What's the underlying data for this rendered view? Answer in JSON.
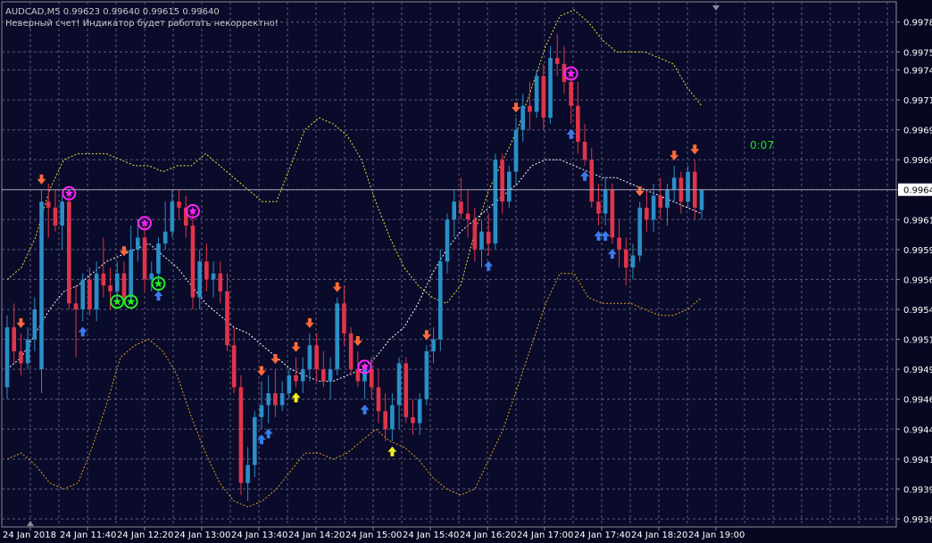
{
  "header": {
    "symbol_line": "AUDCAD,M5  0.99623 0.99640 0.99615 0.99640",
    "warning": "Неверный счет! Индикатор будет работать некорректно!"
  },
  "timer": "0:07",
  "colors": {
    "background": "#0a0a2a",
    "grid": "#5a5a7a",
    "bull_candle": "#2a8fc6",
    "bear_candle": "#e0344a",
    "upper_band": "#e8e23a",
    "middle_band": "#ffffff",
    "lower_band": "#e0a020",
    "sell_arrow": "#ff6a3a",
    "buy_arrow": "#3a7ae8",
    "buy_arrow_alt": "#f0f020",
    "star_magenta": "#ff22ff",
    "star_green": "#22ee22",
    "axis_text": "#ffffff",
    "current_price_bg": "#ffffff",
    "timer": "#22e022"
  },
  "chart_data": {
    "type": "candlestick",
    "symbol": "AUDCAD",
    "timeframe": "M5",
    "ohlc_header": {
      "open": 0.99623,
      "high": 0.9964,
      "low": 0.99615,
      "close": 0.9964
    },
    "current_price": "0.99640",
    "ylim": [
      0.99365,
      0.99785
    ],
    "y_ticks": [
      "0.99780",
      "0.99755",
      "0.99740",
      "0.99715",
      "0.99690",
      "0.99665",
      "0.99640",
      "0.99615",
      "0.99590",
      "0.99565",
      "0.99540",
      "0.99515",
      "0.99490",
      "0.99465",
      "0.99440",
      "0.99415",
      "0.99390",
      "0.99365"
    ],
    "x_ticks": [
      "24 Jan 2018",
      "24 Jan 11:40",
      "24 Jan 12:20",
      "24 Jan 13:00",
      "24 Jan 13:40",
      "24 Jan 14:20",
      "24 Jan 15:00",
      "24 Jan 15:40",
      "24 Jan 16:20",
      "24 Jan 17:00",
      "24 Jan 17:40",
      "24 Jan 18:20",
      "24 Jan 19:00"
    ],
    "grid": true,
    "candles": [
      {
        "o": 0.99475,
        "h": 0.99535,
        "l": 0.99465,
        "c": 0.99525
      },
      {
        "o": 0.99525,
        "h": 0.99545,
        "l": 0.99495,
        "c": 0.99505
      },
      {
        "o": 0.99505,
        "h": 0.9952,
        "l": 0.99485,
        "c": 0.99495
      },
      {
        "o": 0.99495,
        "h": 0.99525,
        "l": 0.9949,
        "c": 0.99515
      },
      {
        "o": 0.99515,
        "h": 0.9955,
        "l": 0.99505,
        "c": 0.9954
      },
      {
        "o": 0.9949,
        "h": 0.9964,
        "l": 0.9947,
        "c": 0.9963
      },
      {
        "o": 0.9963,
        "h": 0.99645,
        "l": 0.996,
        "c": 0.99625
      },
      {
        "o": 0.99625,
        "h": 0.9964,
        "l": 0.99605,
        "c": 0.9961
      },
      {
        "o": 0.9961,
        "h": 0.99635,
        "l": 0.9959,
        "c": 0.9963
      },
      {
        "o": 0.9963,
        "h": 0.9964,
        "l": 0.9954,
        "c": 0.99545
      },
      {
        "o": 0.99545,
        "h": 0.9956,
        "l": 0.995,
        "c": 0.9954
      },
      {
        "o": 0.9954,
        "h": 0.9957,
        "l": 0.9953,
        "c": 0.99565
      },
      {
        "o": 0.99565,
        "h": 0.99575,
        "l": 0.99535,
        "c": 0.9954
      },
      {
        "o": 0.9954,
        "h": 0.9958,
        "l": 0.9953,
        "c": 0.9957
      },
      {
        "o": 0.9957,
        "h": 0.996,
        "l": 0.9955,
        "c": 0.9956
      },
      {
        "o": 0.9956,
        "h": 0.99575,
        "l": 0.9954,
        "c": 0.99555
      },
      {
        "o": 0.99555,
        "h": 0.9958,
        "l": 0.99545,
        "c": 0.9957
      },
      {
        "o": 0.9957,
        "h": 0.9958,
        "l": 0.99545,
        "c": 0.9955
      },
      {
        "o": 0.9955,
        "h": 0.9961,
        "l": 0.99545,
        "c": 0.9959
      },
      {
        "o": 0.9959,
        "h": 0.99615,
        "l": 0.9958,
        "c": 0.996
      },
      {
        "o": 0.996,
        "h": 0.99615,
        "l": 0.99555,
        "c": 0.99565
      },
      {
        "o": 0.99565,
        "h": 0.9958,
        "l": 0.99555,
        "c": 0.9957
      },
      {
        "o": 0.9957,
        "h": 0.996,
        "l": 0.9956,
        "c": 0.99595
      },
      {
        "o": 0.99595,
        "h": 0.9963,
        "l": 0.9959,
        "c": 0.99605
      },
      {
        "o": 0.99605,
        "h": 0.9964,
        "l": 0.996,
        "c": 0.9963
      },
      {
        "o": 0.9963,
        "h": 0.9964,
        "l": 0.99615,
        "c": 0.99625
      },
      {
        "o": 0.99625,
        "h": 0.99635,
        "l": 0.996,
        "c": 0.9961
      },
      {
        "o": 0.9961,
        "h": 0.99625,
        "l": 0.9954,
        "c": 0.9955
      },
      {
        "o": 0.9955,
        "h": 0.9959,
        "l": 0.9954,
        "c": 0.9958
      },
      {
        "o": 0.9958,
        "h": 0.99595,
        "l": 0.99555,
        "c": 0.99565
      },
      {
        "o": 0.99565,
        "h": 0.9958,
        "l": 0.9955,
        "c": 0.9957
      },
      {
        "o": 0.9957,
        "h": 0.9958,
        "l": 0.99545,
        "c": 0.99555
      },
      {
        "o": 0.99555,
        "h": 0.9957,
        "l": 0.99505,
        "c": 0.9951
      },
      {
        "o": 0.9951,
        "h": 0.99525,
        "l": 0.9947,
        "c": 0.99475
      },
      {
        "o": 0.99475,
        "h": 0.99485,
        "l": 0.99385,
        "c": 0.99395
      },
      {
        "o": 0.99395,
        "h": 0.99425,
        "l": 0.9938,
        "c": 0.9941
      },
      {
        "o": 0.9941,
        "h": 0.99455,
        "l": 0.994,
        "c": 0.9945
      },
      {
        "o": 0.9945,
        "h": 0.9948,
        "l": 0.9944,
        "c": 0.9946
      },
      {
        "o": 0.9946,
        "h": 0.99485,
        "l": 0.99445,
        "c": 0.9947
      },
      {
        "o": 0.9947,
        "h": 0.9949,
        "l": 0.9945,
        "c": 0.9946
      },
      {
        "o": 0.9946,
        "h": 0.9948,
        "l": 0.99455,
        "c": 0.9947
      },
      {
        "o": 0.9947,
        "h": 0.9949,
        "l": 0.99465,
        "c": 0.99485
      },
      {
        "o": 0.99485,
        "h": 0.995,
        "l": 0.99475,
        "c": 0.9948
      },
      {
        "o": 0.9948,
        "h": 0.995,
        "l": 0.9947,
        "c": 0.9949
      },
      {
        "o": 0.9949,
        "h": 0.9952,
        "l": 0.9948,
        "c": 0.9951
      },
      {
        "o": 0.9951,
        "h": 0.9952,
        "l": 0.9948,
        "c": 0.9949
      },
      {
        "o": 0.9949,
        "h": 0.99505,
        "l": 0.99475,
        "c": 0.9948
      },
      {
        "o": 0.9948,
        "h": 0.995,
        "l": 0.99465,
        "c": 0.9949
      },
      {
        "o": 0.9949,
        "h": 0.9955,
        "l": 0.99485,
        "c": 0.99545
      },
      {
        "o": 0.99545,
        "h": 0.9956,
        "l": 0.9951,
        "c": 0.9952
      },
      {
        "o": 0.9952,
        "h": 0.99525,
        "l": 0.99485,
        "c": 0.9949
      },
      {
        "o": 0.9949,
        "h": 0.99505,
        "l": 0.99475,
        "c": 0.9948
      },
      {
        "o": 0.9948,
        "h": 0.99495,
        "l": 0.99465,
        "c": 0.9949
      },
      {
        "o": 0.9949,
        "h": 0.995,
        "l": 0.99465,
        "c": 0.99475
      },
      {
        "o": 0.99475,
        "h": 0.9949,
        "l": 0.99445,
        "c": 0.99455
      },
      {
        "o": 0.99455,
        "h": 0.9947,
        "l": 0.9943,
        "c": 0.9944
      },
      {
        "o": 0.9944,
        "h": 0.9947,
        "l": 0.9943,
        "c": 0.9946
      },
      {
        "o": 0.9946,
        "h": 0.995,
        "l": 0.9944,
        "c": 0.99495
      },
      {
        "o": 0.99495,
        "h": 0.995,
        "l": 0.99445,
        "c": 0.9945
      },
      {
        "o": 0.9945,
        "h": 0.99465,
        "l": 0.99435,
        "c": 0.99445
      },
      {
        "o": 0.99445,
        "h": 0.9947,
        "l": 0.99435,
        "c": 0.99465
      },
      {
        "o": 0.99465,
        "h": 0.9951,
        "l": 0.9946,
        "c": 0.99505
      },
      {
        "o": 0.99505,
        "h": 0.99525,
        "l": 0.99495,
        "c": 0.99515
      },
      {
        "o": 0.99515,
        "h": 0.9959,
        "l": 0.99505,
        "c": 0.9958
      },
      {
        "o": 0.9958,
        "h": 0.9962,
        "l": 0.9957,
        "c": 0.99615
      },
      {
        "o": 0.99615,
        "h": 0.9964,
        "l": 0.996,
        "c": 0.9963
      },
      {
        "o": 0.9963,
        "h": 0.9965,
        "l": 0.99615,
        "c": 0.9962
      },
      {
        "o": 0.9962,
        "h": 0.9964,
        "l": 0.996,
        "c": 0.99615
      },
      {
        "o": 0.99615,
        "h": 0.99625,
        "l": 0.9958,
        "c": 0.9959
      },
      {
        "o": 0.9959,
        "h": 0.99615,
        "l": 0.99575,
        "c": 0.99605
      },
      {
        "o": 0.99605,
        "h": 0.9962,
        "l": 0.99585,
        "c": 0.99595
      },
      {
        "o": 0.99595,
        "h": 0.9967,
        "l": 0.9959,
        "c": 0.99665
      },
      {
        "o": 0.99665,
        "h": 0.9967,
        "l": 0.9962,
        "c": 0.9963
      },
      {
        "o": 0.9963,
        "h": 0.9966,
        "l": 0.99625,
        "c": 0.99655
      },
      {
        "o": 0.99655,
        "h": 0.997,
        "l": 0.99645,
        "c": 0.9969
      },
      {
        "o": 0.9969,
        "h": 0.9972,
        "l": 0.9968,
        "c": 0.9971
      },
      {
        "o": 0.9971,
        "h": 0.9973,
        "l": 0.9969,
        "c": 0.99705
      },
      {
        "o": 0.99705,
        "h": 0.9974,
        "l": 0.997,
        "c": 0.99735
      },
      {
        "o": 0.99735,
        "h": 0.99745,
        "l": 0.9969,
        "c": 0.997
      },
      {
        "o": 0.997,
        "h": 0.9976,
        "l": 0.99695,
        "c": 0.9975
      },
      {
        "o": 0.9975,
        "h": 0.9977,
        "l": 0.99735,
        "c": 0.99745
      },
      {
        "o": 0.99745,
        "h": 0.9976,
        "l": 0.9972,
        "c": 0.9973
      },
      {
        "o": 0.9973,
        "h": 0.9974,
        "l": 0.99695,
        "c": 0.9971
      },
      {
        "o": 0.9971,
        "h": 0.9973,
        "l": 0.9967,
        "c": 0.9968
      },
      {
        "o": 0.9968,
        "h": 0.99695,
        "l": 0.9966,
        "c": 0.99665
      },
      {
        "o": 0.99665,
        "h": 0.99675,
        "l": 0.99625,
        "c": 0.9963
      },
      {
        "o": 0.9963,
        "h": 0.99645,
        "l": 0.9961,
        "c": 0.9962
      },
      {
        "o": 0.9962,
        "h": 0.9965,
        "l": 0.9961,
        "c": 0.9964
      },
      {
        "o": 0.9964,
        "h": 0.99645,
        "l": 0.99595,
        "c": 0.996
      },
      {
        "o": 0.996,
        "h": 0.99615,
        "l": 0.99575,
        "c": 0.9959
      },
      {
        "o": 0.9959,
        "h": 0.996,
        "l": 0.9956,
        "c": 0.99575
      },
      {
        "o": 0.99575,
        "h": 0.99595,
        "l": 0.99565,
        "c": 0.99585
      },
      {
        "o": 0.99585,
        "h": 0.9963,
        "l": 0.9958,
        "c": 0.99625
      },
      {
        "o": 0.99625,
        "h": 0.9964,
        "l": 0.99605,
        "c": 0.99615
      },
      {
        "o": 0.99615,
        "h": 0.99645,
        "l": 0.99605,
        "c": 0.99635
      },
      {
        "o": 0.99635,
        "h": 0.9965,
        "l": 0.99615,
        "c": 0.99625
      },
      {
        "o": 0.99625,
        "h": 0.99645,
        "l": 0.9961,
        "c": 0.9964
      },
      {
        "o": 0.9964,
        "h": 0.9966,
        "l": 0.9963,
        "c": 0.9965
      },
      {
        "o": 0.9965,
        "h": 0.99655,
        "l": 0.9962,
        "c": 0.9963
      },
      {
        "o": 0.9963,
        "h": 0.9966,
        "l": 0.99625,
        "c": 0.99655
      },
      {
        "o": 0.99655,
        "h": 0.99665,
        "l": 0.99615,
        "c": 0.99625
      },
      {
        "o": 0.99623,
        "h": 0.9964,
        "l": 0.99615,
        "c": 0.9964
      }
    ],
    "bands": {
      "upper": [
        0.99565,
        0.99575,
        0.996,
        0.9964,
        0.99665,
        0.9967,
        0.9967,
        0.9967,
        0.99665,
        0.9966,
        0.9966,
        0.99655,
        0.9966,
        0.9966,
        0.9967,
        0.9966,
        0.9965,
        0.9964,
        0.9963,
        0.9963,
        0.9966,
        0.9969,
        0.997,
        0.99695,
        0.99685,
        0.99665,
        0.9963,
        0.996,
        0.99575,
        0.9956,
        0.9955,
        0.99545,
        0.9956,
        0.99605,
        0.9964,
        0.99665,
        0.9969,
        0.99725,
        0.9976,
        0.99785,
        0.9979,
        0.9978,
        0.99765,
        0.99755,
        0.99755,
        0.99755,
        0.9975,
        0.99745,
        0.99725,
        0.9971
      ],
      "middle": [
        0.9949,
        0.995,
        0.9952,
        0.9954,
        0.99555,
        0.9956,
        0.9957,
        0.9958,
        0.99585,
        0.9959,
        0.99595,
        0.99585,
        0.99575,
        0.9956,
        0.99545,
        0.99535,
        0.99525,
        0.9952,
        0.9951,
        0.995,
        0.9949,
        0.99485,
        0.9948,
        0.9948,
        0.99485,
        0.9949,
        0.995,
        0.99515,
        0.99525,
        0.99545,
        0.9957,
        0.9959,
        0.99605,
        0.99615,
        0.99625,
        0.99635,
        0.99645,
        0.9966,
        0.99665,
        0.99665,
        0.9966,
        0.99655,
        0.9965,
        0.9965,
        0.99645,
        0.9964,
        0.99635,
        0.9963,
        0.99625,
        0.9962
      ],
      "lower": [
        0.99415,
        0.9942,
        0.9941,
        0.99395,
        0.9939,
        0.99395,
        0.99425,
        0.9946,
        0.995,
        0.9951,
        0.99515,
        0.99505,
        0.99485,
        0.9945,
        0.9942,
        0.99395,
        0.9938,
        0.99375,
        0.9938,
        0.9939,
        0.99405,
        0.9942,
        0.9942,
        0.99415,
        0.9942,
        0.9943,
        0.9944,
        0.9943,
        0.99425,
        0.99415,
        0.994,
        0.9939,
        0.99385,
        0.9939,
        0.99415,
        0.9944,
        0.99475,
        0.9951,
        0.99545,
        0.9957,
        0.9957,
        0.9955,
        0.99545,
        0.99545,
        0.99545,
        0.9954,
        0.99535,
        0.99535,
        0.9954,
        0.9955
      ]
    },
    "signals": [
      {
        "type": "sell",
        "index": 3
      },
      {
        "type": "sell",
        "index": 7
      },
      {
        "type": "sell",
        "index": 25
      },
      {
        "type": "sell",
        "index": 55
      },
      {
        "type": "sell",
        "index": 58
      },
      {
        "type": "sell",
        "index": 62
      },
      {
        "type": "sell",
        "index": 66
      },
      {
        "type": "sell",
        "index": 72
      },
      {
        "type": "sell",
        "index": 75
      },
      {
        "type": "sell",
        "index": 90
      },
      {
        "type": "sell",
        "index": 110
      },
      {
        "type": "sell",
        "index": 137
      },
      {
        "type": "sell",
        "index": 144
      },
      {
        "type": "sell",
        "index": 148
      },
      {
        "type": "buy",
        "index": 16
      },
      {
        "type": "buy",
        "index": 33
      },
      {
        "type": "buy",
        "index": 55
      },
      {
        "type": "buy",
        "index": 57
      },
      {
        "type": "buy",
        "index": 77
      },
      {
        "type": "buy",
        "index": 104
      },
      {
        "type": "buy",
        "index": 122
      },
      {
        "type": "buy",
        "index": 125
      },
      {
        "type": "buy",
        "index": 127
      },
      {
        "type": "buy",
        "index": 129
      },
      {
        "type": "buy",
        "index": 131
      }
    ],
    "buy_signals_alt": [
      {
        "index": 62
      },
      {
        "index": 83
      }
    ],
    "stars": [
      {
        "color": "magenta",
        "index": 13
      },
      {
        "color": "magenta",
        "index": 29
      },
      {
        "color": "magenta",
        "index": 40
      },
      {
        "color": "magenta",
        "index": 77
      },
      {
        "color": "magenta",
        "index": 122
      },
      {
        "color": "green",
        "index": 24
      },
      {
        "color": "green",
        "index": 26
      },
      {
        "color": "green",
        "index": 33
      }
    ]
  }
}
